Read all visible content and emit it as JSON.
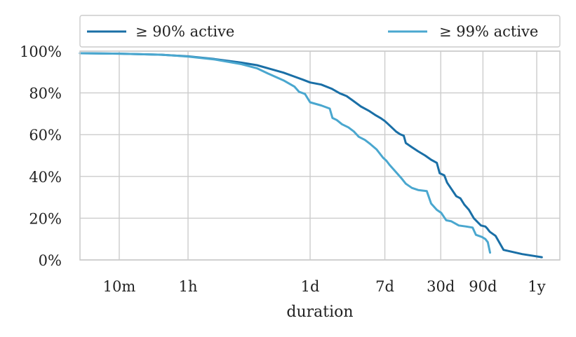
{
  "chart_data": {
    "type": "line",
    "xlabel": "duration",
    "ylabel": "",
    "x_scale": "log",
    "x_unit": "hours",
    "xlim": [
      0.06,
      16000
    ],
    "ylim": [
      0,
      100
    ],
    "x_ticks": [
      {
        "value": 0.1667,
        "label": "10m"
      },
      {
        "value": 1,
        "label": "1h"
      },
      {
        "value": 24,
        "label": "1d"
      },
      {
        "value": 168,
        "label": "7d"
      },
      {
        "value": 720,
        "label": "30d"
      },
      {
        "value": 2160,
        "label": "90d"
      },
      {
        "value": 8760,
        "label": "1y"
      }
    ],
    "y_ticks": [
      {
        "value": 0,
        "label": "0%"
      },
      {
        "value": 20,
        "label": "20%"
      },
      {
        "value": 40,
        "label": "40%"
      },
      {
        "value": 60,
        "label": "60%"
      },
      {
        "value": 80,
        "label": "80%"
      },
      {
        "value": 100,
        "label": "100%"
      }
    ],
    "grid": true,
    "legend": {
      "position": "top",
      "layout": "horizontal"
    },
    "series": [
      {
        "name": "≥ 90% active",
        "color": "#1a6fa6",
        "points": [
          [
            0.06,
            99
          ],
          [
            0.17,
            98.8
          ],
          [
            0.5,
            98.3
          ],
          [
            1,
            97.5
          ],
          [
            2,
            96.2
          ],
          [
            4,
            94.5
          ],
          [
            6,
            93.3
          ],
          [
            8,
            91.8
          ],
          [
            12,
            89.7
          ],
          [
            16,
            87.8
          ],
          [
            20,
            86.3
          ],
          [
            24,
            85
          ],
          [
            32,
            84
          ],
          [
            42,
            82
          ],
          [
            52,
            79.8
          ],
          [
            62,
            78.5
          ],
          [
            72,
            76.5
          ],
          [
            90,
            73.5
          ],
          [
            110,
            71.5
          ],
          [
            130,
            69.5
          ],
          [
            150,
            68
          ],
          [
            168,
            66.5
          ],
          [
            195,
            64
          ],
          [
            225,
            61.5
          ],
          [
            250,
            60.2
          ],
          [
            275,
            59.5
          ],
          [
            290,
            56
          ],
          [
            340,
            54
          ],
          [
            400,
            52
          ],
          [
            480,
            50
          ],
          [
            560,
            48
          ],
          [
            650,
            46.5
          ],
          [
            700,
            41.5
          ],
          [
            790,
            40.5
          ],
          [
            850,
            37
          ],
          [
            950,
            34
          ],
          [
            1080,
            30.5
          ],
          [
            1200,
            29.5
          ],
          [
            1330,
            26.5
          ],
          [
            1500,
            24
          ],
          [
            1700,
            20
          ],
          [
            2050,
            16.5
          ],
          [
            2300,
            16
          ],
          [
            2400,
            15.2
          ],
          [
            2580,
            13.5
          ],
          [
            3000,
            11.5
          ],
          [
            3700,
            4.8
          ],
          [
            6000,
            2.8
          ],
          [
            10000,
            1.3
          ]
        ]
      },
      {
        "name": "≥ 99% active",
        "color": "#4aa7cf",
        "points": [
          [
            0.06,
            99
          ],
          [
            0.17,
            98.8
          ],
          [
            0.5,
            98.3
          ],
          [
            1,
            97.4
          ],
          [
            2,
            96
          ],
          [
            4,
            93.8
          ],
          [
            6,
            91.8
          ],
          [
            8,
            89.3
          ],
          [
            12,
            86
          ],
          [
            16,
            83
          ],
          [
            18,
            80.5
          ],
          [
            21,
            79.5
          ],
          [
            24,
            75.5
          ],
          [
            32,
            74
          ],
          [
            40,
            72.5
          ],
          [
            43,
            68
          ],
          [
            48,
            67
          ],
          [
            55,
            65
          ],
          [
            65,
            63.5
          ],
          [
            75,
            61.5
          ],
          [
            85,
            59
          ],
          [
            100,
            57.5
          ],
          [
            115,
            55.5
          ],
          [
            135,
            53
          ],
          [
            160,
            49
          ],
          [
            175,
            47.5
          ],
          [
            190,
            45.5
          ],
          [
            220,
            42.5
          ],
          [
            260,
            39
          ],
          [
            290,
            36.5
          ],
          [
            340,
            34.5
          ],
          [
            400,
            33.5
          ],
          [
            500,
            33
          ],
          [
            560,
            27
          ],
          [
            650,
            24
          ],
          [
            730,
            22.5
          ],
          [
            830,
            19
          ],
          [
            950,
            18.5
          ],
          [
            1150,
            16.5
          ],
          [
            1400,
            16
          ],
          [
            1650,
            15.5
          ],
          [
            1800,
            12
          ],
          [
            2100,
            11
          ],
          [
            2300,
            10
          ],
          [
            2450,
            8.5
          ],
          [
            2600,
            3.5
          ]
        ]
      }
    ]
  }
}
